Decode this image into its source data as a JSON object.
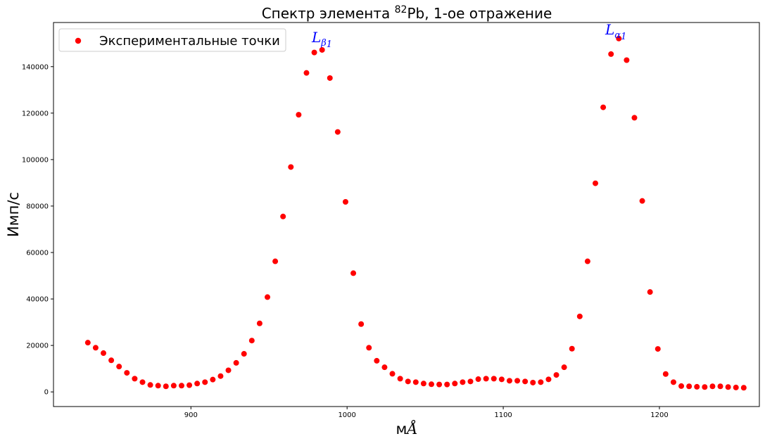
{
  "chart_data": {
    "type": "scatter",
    "title": {
      "prefix": "Спектр элемента ",
      "superscript": "82",
      "suffix": "Pb, 1-ое отражение"
    },
    "xlabel": {
      "text": "м",
      "symbol": "Å"
    },
    "ylabel": "Имп/с",
    "xlim": [
      812,
      1264
    ],
    "ylim": [
      -6300,
      159000
    ],
    "x_ticks": [
      900,
      1000,
      1100,
      1200
    ],
    "y_ticks": [
      0,
      20000,
      40000,
      60000,
      80000,
      100000,
      120000,
      140000
    ],
    "grid": false,
    "legend": {
      "position": "top-left",
      "entries": [
        "Экспериментальные точки"
      ]
    },
    "series": [
      {
        "name": "Экспериментальные точки",
        "color": "#ff0000",
        "x": [
          834,
          839,
          844,
          849,
          854,
          859,
          864,
          869,
          874,
          879,
          884,
          889,
          894,
          899,
          904,
          909,
          914,
          919,
          924,
          929,
          934,
          939,
          944,
          949,
          954,
          959,
          964,
          969,
          974,
          979,
          984,
          989,
          994,
          999,
          1004,
          1009,
          1014,
          1019,
          1024,
          1029,
          1034,
          1039,
          1044,
          1049,
          1054,
          1059,
          1064,
          1069,
          1074,
          1079,
          1084,
          1089,
          1094,
          1099,
          1104,
          1109,
          1114,
          1119,
          1124,
          1129,
          1134,
          1139,
          1144,
          1149,
          1154,
          1159,
          1164,
          1169,
          1174,
          1179,
          1184,
          1189,
          1194,
          1199,
          1204,
          1209,
          1214,
          1219,
          1224,
          1229,
          1234,
          1239,
          1244,
          1249,
          1254
        ],
        "y": [
          21200,
          19000,
          16700,
          13600,
          10900,
          8200,
          5700,
          4200,
          3000,
          2700,
          2400,
          2700,
          2700,
          2900,
          3600,
          4200,
          5300,
          6800,
          9300,
          12500,
          16400,
          22100,
          29500,
          40800,
          56200,
          75500,
          96800,
          119300,
          137300,
          146100,
          147200,
          135100,
          111900,
          81800,
          51100,
          29200,
          19000,
          13400,
          10600,
          7800,
          5700,
          4500,
          4200,
          3600,
          3300,
          3200,
          3200,
          3600,
          4200,
          4500,
          5500,
          5700,
          5700,
          5400,
          4800,
          4800,
          4500,
          4000,
          4200,
          5400,
          7300,
          10600,
          18600,
          32500,
          56200,
          89800,
          122500,
          145400,
          152100,
          142800,
          118000,
          82200,
          43000,
          18500,
          7700,
          4200,
          2500,
          2400,
          2200,
          2100,
          2400,
          2400,
          2100,
          1900,
          1800
        ]
      }
    ],
    "annotations": [
      {
        "label": "L",
        "subscript_symbol": "β",
        "subscript_index": "1",
        "color": "#0000ff"
      },
      {
        "label": "L",
        "subscript_symbol": "α",
        "subscript_index": "1",
        "color": "#0000ff"
      }
    ]
  }
}
